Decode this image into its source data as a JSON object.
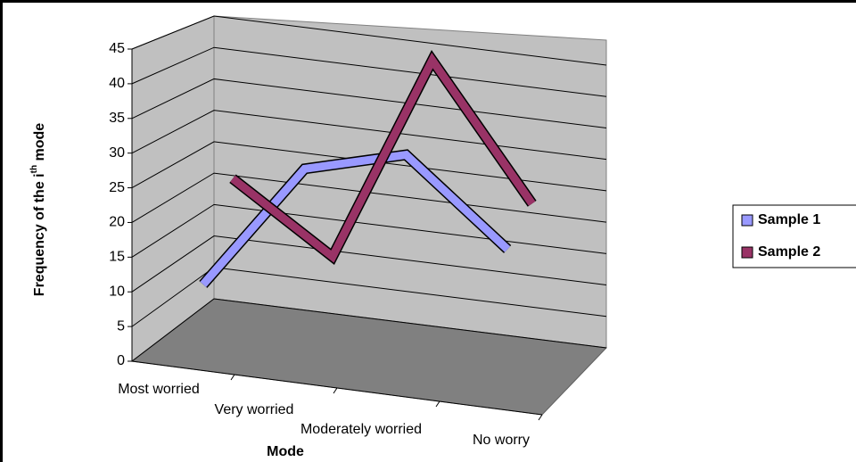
{
  "chart_data": {
    "type": "line3d",
    "y_label": {
      "before": "Frequency of the i",
      "sup": "th",
      "after": " mode"
    },
    "x_label": "Mode",
    "categories": [
      "Most worried",
      "Very worried",
      "Moderately worried",
      "No worry"
    ],
    "series": [
      {
        "name": "Sample 1",
        "color": "#9999ff",
        "values": [
          10,
          29,
          33,
          21
        ]
      },
      {
        "name": "Sample 2",
        "color": "#993366",
        "values": [
          23,
          13,
          45,
          25
        ]
      }
    ],
    "ylim": [
      0,
      45
    ],
    "yticks": [
      0,
      5,
      10,
      15,
      20,
      25,
      30,
      35,
      40,
      45
    ],
    "grid": true,
    "legend": "right"
  }
}
